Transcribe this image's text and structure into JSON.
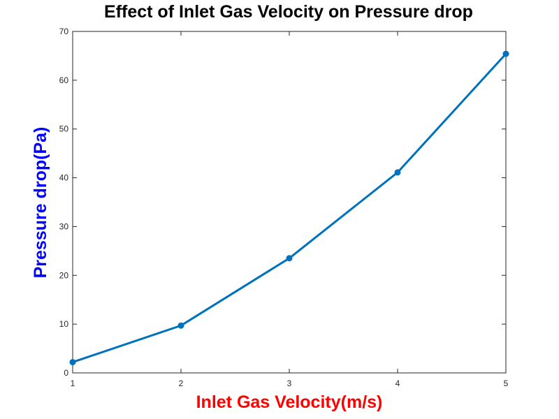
{
  "chart_data": {
    "type": "line",
    "title": "Effect of Inlet Gas Velocity on Pressure drop",
    "xlabel": "Inlet Gas Velocity(m/s)",
    "ylabel": "Pressure drop(Pa)",
    "x": [
      1,
      2,
      3,
      4,
      5
    ],
    "series": [
      {
        "values": [
          2.2,
          9.7,
          23.5,
          41.1,
          65.4
        ],
        "color": "#0072bd",
        "marker": "circle"
      }
    ],
    "xlim": [
      1,
      5
    ],
    "ylim": [
      0,
      70
    ],
    "xticks": [
      "1",
      "2",
      "3",
      "4",
      "5"
    ],
    "yticks": [
      "0",
      "10",
      "20",
      "30",
      "40",
      "50",
      "60",
      "70"
    ],
    "grid": false,
    "xlabel_color": "#ff0000",
    "ylabel_color": "#0000ff",
    "axis_color": "#262626"
  }
}
